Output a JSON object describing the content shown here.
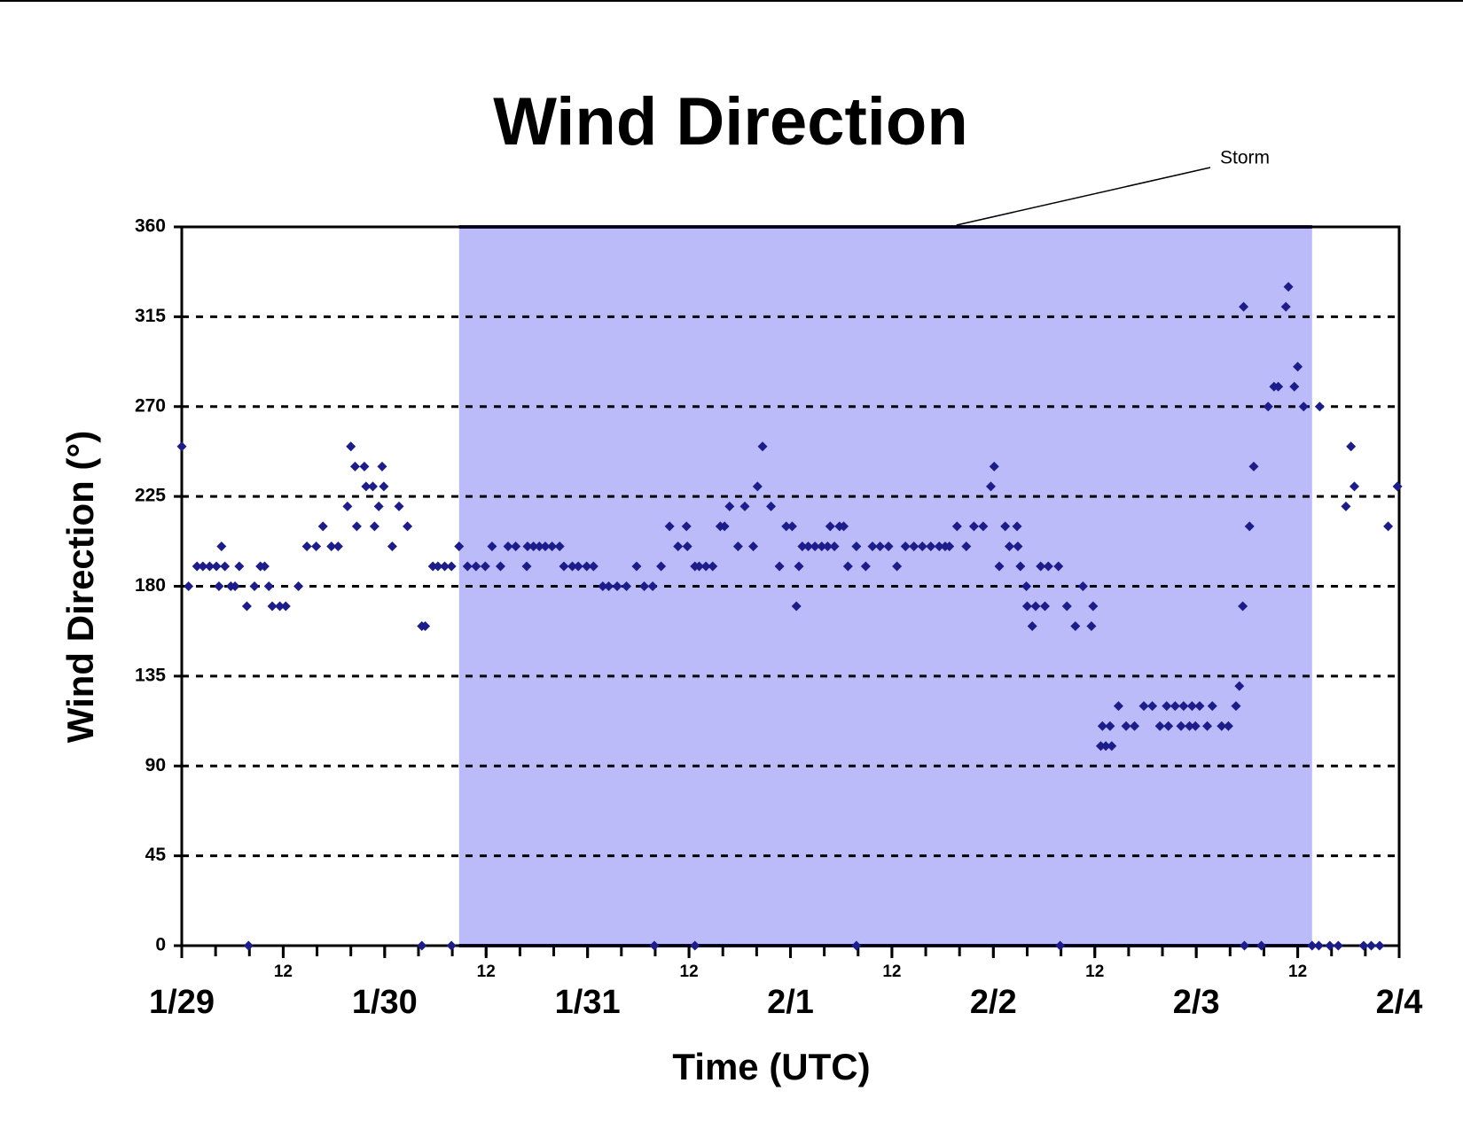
{
  "chart_data": {
    "type": "scatter",
    "title": "Wind Direction",
    "x_label": "Time (UTC)",
    "y_label": "Wind Direction (°)",
    "xlim": [
      0,
      144
    ],
    "ylim": [
      0,
      360
    ],
    "xticks": [
      {
        "value": 0,
        "label": "1/29"
      },
      12,
      {
        "value": 24,
        "label": "1/30"
      },
      {
        "value": 36,
        "label": "12"
      },
      {
        "value": 48,
        "label": "1/31"
      },
      {
        "value": 60,
        "label": "12"
      },
      {
        "value": 72,
        "label": "2/1"
      },
      {
        "value": 84,
        "label": "12"
      },
      {
        "value": 96,
        "label": "2/2"
      },
      {
        "value": 108,
        "label": "12"
      },
      {
        "value": 120,
        "label": "2/3"
      },
      {
        "value": 132,
        "label": "12"
      },
      {
        "value": 144,
        "label": "2/4"
      }
    ],
    "yticks": [
      0,
      45,
      90,
      135,
      180,
      225,
      270,
      315,
      360
    ],
    "grid": true,
    "shade": {
      "label": "Storm",
      "x": [
        32.8,
        133.7
      ],
      "color": "#bbbbf9"
    },
    "series": [
      {
        "color": "#1c1c8a",
        "x": [
          0.0,
          0.8,
          1.8,
          2.5,
          3.3,
          4.1,
          4.4,
          4.7,
          5.1,
          5.8,
          6.3,
          6.8,
          7.7,
          8.6,
          9.3,
          9.8,
          10.3,
          10.7,
          11.6,
          12.3,
          13.8,
          14.8,
          15.9,
          16.7,
          17.7,
          18.5,
          19.6,
          20.0,
          20.5,
          20.7,
          21.6,
          21.8,
          22.6,
          22.8,
          23.3,
          23.7,
          23.9,
          24.9,
          25.7,
          26.7,
          28.4,
          28.8,
          29.7,
          30.3,
          31.1,
          31.9,
          32.8,
          33.8,
          34.8,
          35.9,
          36.7,
          37.7,
          38.6,
          39.5,
          40.8,
          40.9,
          41.6,
          42.3,
          43.0,
          43.8,
          44.7,
          45.2,
          46.2,
          46.9,
          47.9,
          48.7,
          49.8,
          50.5,
          51.5,
          52.6,
          53.8,
          54.7,
          55.7,
          56.7,
          57.7,
          58.7,
          59.7,
          59.8,
          60.7,
          61.2,
          62.0,
          62.8,
          63.7,
          64.2,
          64.8,
          65.8,
          66.6,
          67.6,
          68.1,
          68.7,
          69.7,
          70.7,
          71.5,
          72.2,
          72.7,
          73.0,
          73.4,
          74.1,
          74.9,
          75.7,
          76.4,
          76.7,
          77.2,
          77.8,
          78.3,
          78.8,
          79.8,
          80.9,
          81.7,
          82.6,
          83.6,
          84.6,
          85.6,
          86.6,
          87.6,
          88.6,
          89.6,
          90.3,
          90.8,
          91.7,
          92.8,
          93.7,
          94.8,
          95.7,
          96.1,
          96.7,
          97.4,
          97.9,
          98.8,
          98.9,
          99.2,
          99.9,
          100.0,
          100.6,
          101.0,
          101.6,
          102.1,
          102.5,
          103.7,
          104.7,
          105.7,
          106.6,
          107.6,
          107.8,
          108.7,
          108.9,
          109.3,
          109.8,
          110.0,
          110.8,
          111.7,
          112.7,
          113.8,
          114.8,
          115.7,
          116.5,
          116.7,
          117.5,
          118.2,
          118.5,
          119.2,
          119.5,
          119.9,
          120.4,
          121.3,
          121.9,
          123.0,
          123.8,
          124.7,
          125.1,
          125.5,
          125.6,
          126.3,
          126.8,
          128.5,
          129.2,
          129.7,
          130.6,
          130.9,
          131.6,
          132.0,
          132.7,
          134.6,
          137.7,
          138.3,
          138.7,
          142.7,
          143.8,
          7.9,
          28.4,
          31.9,
          55.9,
          60.7,
          79.8,
          103.9,
          125.7,
          127.7,
          133.7,
          134.5,
          135.8,
          136.8,
          139.8,
          140.7,
          141.7
        ],
        "values": [
          250,
          180,
          190,
          190,
          190,
          190,
          180,
          200,
          190,
          180,
          180,
          190,
          170,
          180,
          190,
          190,
          180,
          170,
          170,
          170,
          180,
          200,
          200,
          210,
          200,
          200,
          220,
          250,
          240,
          210,
          240,
          230,
          230,
          210,
          220,
          240,
          230,
          200,
          220,
          210,
          160,
          160,
          190,
          190,
          190,
          190,
          200,
          190,
          190,
          190,
          200,
          190,
          200,
          200,
          190,
          200,
          200,
          200,
          200,
          200,
          200,
          190,
          190,
          190,
          190,
          190,
          180,
          180,
          180,
          180,
          190,
          180,
          180,
          190,
          210,
          200,
          210,
          200,
          190,
          190,
          190,
          190,
          210,
          210,
          220,
          200,
          220,
          200,
          230,
          250,
          220,
          190,
          210,
          210,
          170,
          190,
          200,
          200,
          200,
          200,
          200,
          210,
          200,
          210,
          210,
          190,
          200,
          190,
          200,
          200,
          200,
          190,
          200,
          200,
          200,
          200,
          200,
          200,
          200,
          210,
          200,
          210,
          210,
          230,
          240,
          190,
          210,
          200,
          210,
          200,
          190,
          180,
          170,
          160,
          170,
          190,
          170,
          190,
          190,
          170,
          160,
          180,
          160,
          170,
          100,
          110,
          100,
          110,
          100,
          120,
          110,
          110,
          120,
          120,
          110,
          120,
          110,
          120,
          110,
          120,
          110,
          120,
          110,
          120,
          110,
          120,
          110,
          110,
          120,
          130,
          170,
          320,
          210,
          240,
          270,
          280,
          280,
          320,
          330,
          280,
          290,
          270,
          270,
          220,
          250,
          230,
          210,
          230,
          0,
          0,
          0,
          0,
          0,
          0,
          0,
          0,
          0,
          0,
          0,
          0,
          0,
          0,
          0,
          0
        ]
      }
    ]
  }
}
